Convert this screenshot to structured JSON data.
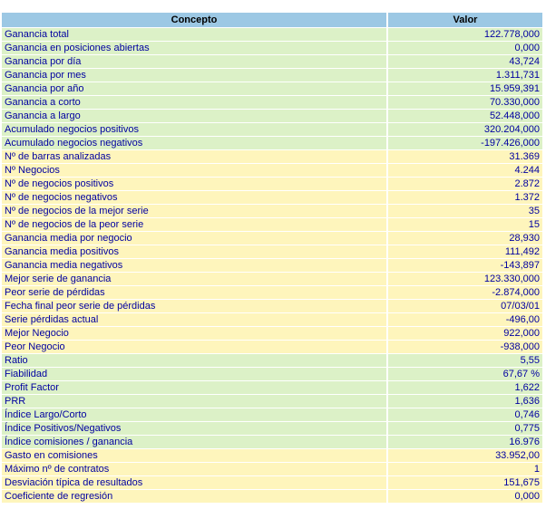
{
  "colors": {
    "header_bg": "#9CC8E4",
    "header_text": "#000000",
    "row_text": "#0000A0",
    "green_bg": "#DCF1C7",
    "yellow_bg": "#FEF5BC"
  },
  "table": {
    "columns": [
      "Concepto",
      "Valor"
    ],
    "rows": [
      {
        "concept": "Ganancia total",
        "value": "122.778,000",
        "tone": "green"
      },
      {
        "concept": "Ganancia en posiciones abiertas",
        "value": "0,000",
        "tone": "green"
      },
      {
        "concept": "Ganancia por día",
        "value": "43,724",
        "tone": "green"
      },
      {
        "concept": "Ganancia por mes",
        "value": "1.311,731",
        "tone": "green"
      },
      {
        "concept": "Ganancia por año",
        "value": "15.959,391",
        "tone": "green"
      },
      {
        "concept": "Ganancia a corto",
        "value": "70.330,000",
        "tone": "green"
      },
      {
        "concept": "Ganancia a largo",
        "value": "52.448,000",
        "tone": "green"
      },
      {
        "concept": "Acumulado negocios positivos",
        "value": "320.204,000",
        "tone": "green"
      },
      {
        "concept": "Acumulado negocios negativos",
        "value": "-197.426,000",
        "tone": "green"
      },
      {
        "concept": "Nº de barras analizadas",
        "value": "31.369",
        "tone": "yellow"
      },
      {
        "concept": "Nº Negocios",
        "value": "4.244",
        "tone": "yellow"
      },
      {
        "concept": "Nº de negocios positivos",
        "value": "2.872",
        "tone": "yellow"
      },
      {
        "concept": "Nº de negocios negativos",
        "value": "1.372",
        "tone": "yellow"
      },
      {
        "concept": "Nº de negocios de la mejor serie",
        "value": "35",
        "tone": "yellow"
      },
      {
        "concept": "Nº de negocios de la peor serie",
        "value": "15",
        "tone": "yellow"
      },
      {
        "concept": "Ganancia media por negocio",
        "value": "28,930",
        "tone": "yellow"
      },
      {
        "concept": "Ganancia media positivos",
        "value": "111,492",
        "tone": "yellow"
      },
      {
        "concept": "Ganancia media negativos",
        "value": "-143,897",
        "tone": "yellow"
      },
      {
        "concept": "Mejor serie de ganancia",
        "value": "123.330,000",
        "tone": "yellow"
      },
      {
        "concept": "Peor serie de pérdidas",
        "value": "-2.874,000",
        "tone": "yellow"
      },
      {
        "concept": "Fecha final peor serie de pérdidas",
        "value": "07/03/01",
        "tone": "yellow"
      },
      {
        "concept": "Serie pérdidas actual",
        "value": "-496,00",
        "tone": "yellow"
      },
      {
        "concept": "Mejor Negocio",
        "value": "922,000",
        "tone": "yellow"
      },
      {
        "concept": "Peor Negocio",
        "value": "-938,000",
        "tone": "yellow"
      },
      {
        "concept": "Ratio",
        "value": "5,55",
        "tone": "green"
      },
      {
        "concept": "Fiabilidad",
        "value": "67,67 %",
        "tone": "green"
      },
      {
        "concept": "Profit Factor",
        "value": "1,622",
        "tone": "green"
      },
      {
        "concept": "PRR",
        "value": "1,636",
        "tone": "green"
      },
      {
        "concept": "Índice Largo/Corto",
        "value": "0,746",
        "tone": "green"
      },
      {
        "concept": "Índice Positivos/Negativos",
        "value": "0,775",
        "tone": "green"
      },
      {
        "concept": "Índice comisiones / ganancia",
        "value": "16.976",
        "tone": "green"
      },
      {
        "concept": "Gasto en comisiones",
        "value": "33.952,00",
        "tone": "yellow"
      },
      {
        "concept": "Máximo nº de contratos",
        "value": "1",
        "tone": "yellow"
      },
      {
        "concept": "Desviación típica de resultados",
        "value": "151,675",
        "tone": "yellow"
      },
      {
        "concept": "Coeficiente de regresión",
        "value": "0,000",
        "tone": "yellow"
      }
    ]
  }
}
